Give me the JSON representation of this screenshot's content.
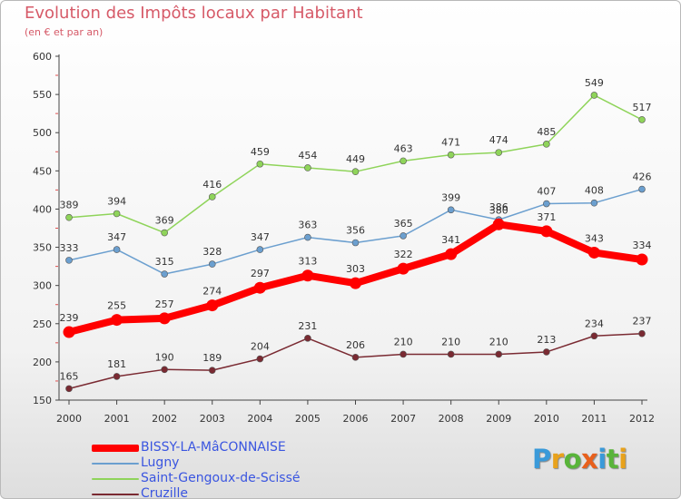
{
  "header": {
    "title": "Evolution des Impôts locaux par Habitant",
    "subtitle": "(en € et par an)"
  },
  "logo": {
    "text": "Proxiti",
    "colors": [
      "#3a9ad9",
      "#e8a21c",
      "#59b43a",
      "#e8601c",
      "#3a9ad9",
      "#59b43a",
      "#e8a21c"
    ]
  },
  "chart_data": {
    "type": "line",
    "x": [
      "2000",
      "2001",
      "2002",
      "2003",
      "2004",
      "2005",
      "2006",
      "2007",
      "2008",
      "2009",
      "2010",
      "2011",
      "2012"
    ],
    "ylim": [
      150,
      600
    ],
    "yticks": [
      150,
      200,
      250,
      300,
      350,
      400,
      450,
      500,
      550,
      600
    ],
    "grid": false,
    "legend_position": "bottom-left",
    "series": [
      {
        "name": "BISSY-LA-MâCONNAISE",
        "color": "#ff0000",
        "emphasis": true,
        "values": [
          239,
          255,
          257,
          274,
          297,
          313,
          303,
          322,
          341,
          380,
          371,
          343,
          334
        ]
      },
      {
        "name": "Lugny",
        "color": "#6b9fcf",
        "emphasis": false,
        "values": [
          333,
          347,
          315,
          328,
          347,
          363,
          356,
          365,
          399,
          386,
          407,
          408,
          426
        ]
      },
      {
        "name": "Saint-Gengoux-de-Scissé",
        "color": "#8fd45a",
        "emphasis": false,
        "values": [
          389,
          394,
          369,
          416,
          459,
          454,
          449,
          463,
          471,
          474,
          485,
          549,
          517
        ]
      },
      {
        "name": "Cruzille",
        "color": "#7a2a32",
        "emphasis": false,
        "values": [
          165,
          181,
          190,
          189,
          204,
          231,
          206,
          210,
          210,
          210,
          213,
          234,
          237
        ]
      }
    ]
  }
}
